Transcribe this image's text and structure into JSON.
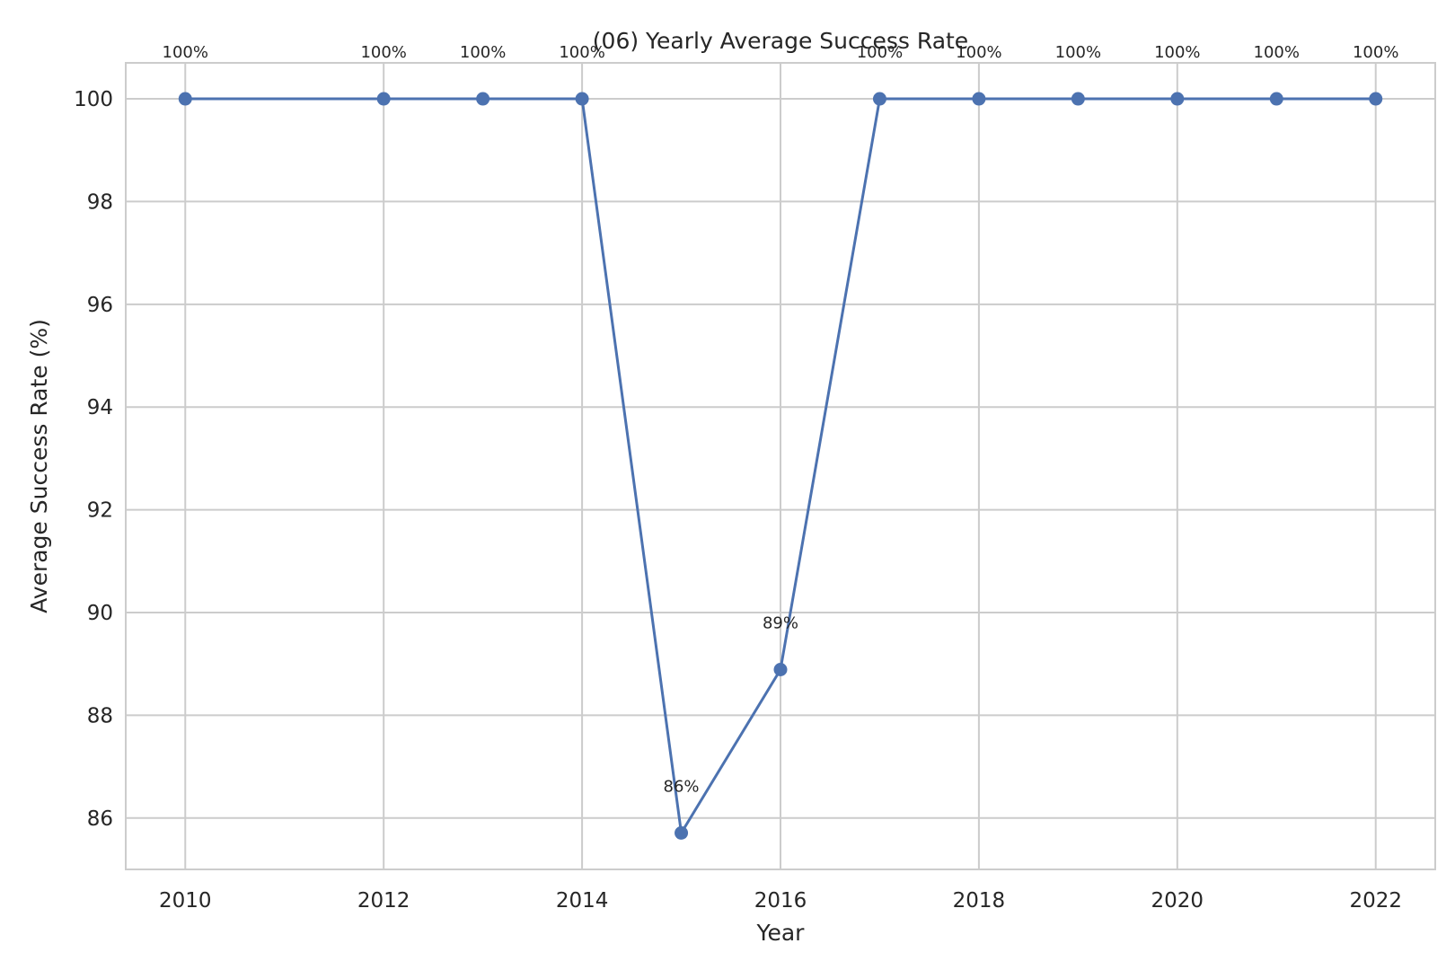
{
  "chart_data": {
    "type": "line",
    "title": "(06) Yearly Average Success Rate",
    "xlabel": "Year",
    "ylabel": "Average Success Rate (%)",
    "xlim": [
      2009.4,
      2022.6
    ],
    "ylim": [
      85.0,
      100.7
    ],
    "xticks": [
      2010,
      2012,
      2014,
      2016,
      2018,
      2020,
      2022
    ],
    "yticks": [
      86,
      88,
      90,
      92,
      94,
      96,
      98,
      100
    ],
    "grid": true,
    "series": [
      {
        "color": "#4c72b0",
        "x": [
          2010,
          2012,
          2013,
          2014,
          2015,
          2016,
          2017,
          2018,
          2019,
          2020,
          2021,
          2022
        ],
        "y": [
          100,
          100,
          100,
          100,
          85.71,
          88.89,
          100,
          100,
          100,
          100,
          100,
          100
        ],
        "labels": [
          "100%",
          "100%",
          "100%",
          "100%",
          "86%",
          "89%",
          "100%",
          "100%",
          "100%",
          "100%",
          "100%",
          "100%"
        ]
      }
    ]
  }
}
